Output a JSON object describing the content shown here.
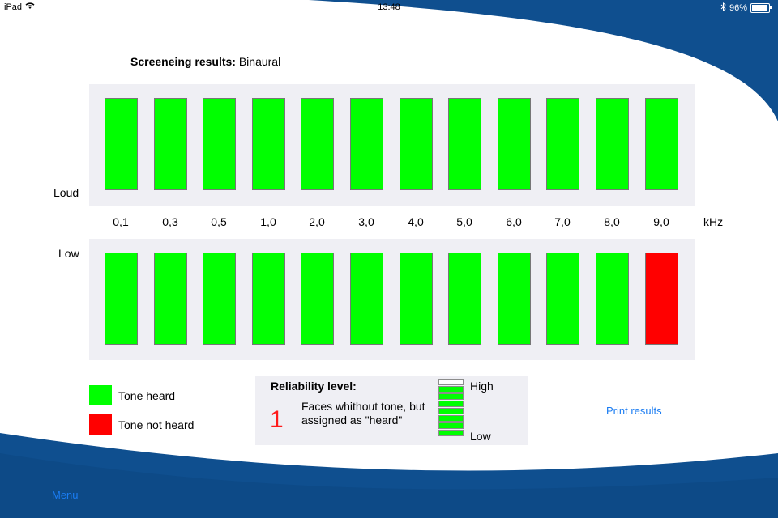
{
  "status_bar": {
    "device": "iPad",
    "time": "13:48",
    "battery": "96%",
    "battery_level": 0.96
  },
  "colors": {
    "heard": "#00ff00",
    "not_heard": "#ff0000",
    "wave": "#0f4f8f",
    "link": "#1a7cf2",
    "reliability_number": "#ff1a1a"
  },
  "title": {
    "label": "Screeneing results:",
    "value": "Binaural"
  },
  "axis": {
    "loud_label": "Loud",
    "low_label": "Low",
    "frequencies": [
      "0,1",
      "0,3",
      "0,5",
      "1,0",
      "2,0",
      "3,0",
      "4,0",
      "5,0",
      "6,0",
      "7,0",
      "8,0",
      "9,0"
    ],
    "unit": "kHz"
  },
  "results": {
    "loud": [
      "heard",
      "heard",
      "heard",
      "heard",
      "heard",
      "heard",
      "heard",
      "heard",
      "heard",
      "heard",
      "heard",
      "heard"
    ],
    "low": [
      "heard",
      "heard",
      "heard",
      "heard",
      "heard",
      "heard",
      "heard",
      "heard",
      "heard",
      "heard",
      "heard",
      "not_heard"
    ]
  },
  "legend": {
    "heard": "Tone heard",
    "not_heard": "Tone not heard"
  },
  "reliability": {
    "title": "Reliability level:",
    "number": "1",
    "description": "Faces whithout tone, but assigned as \"heard\"",
    "high_label": "High",
    "low_label": "Low",
    "segments_total": 8,
    "segments_filled": 7
  },
  "actions": {
    "print": "Print results",
    "menu": "Menu"
  }
}
